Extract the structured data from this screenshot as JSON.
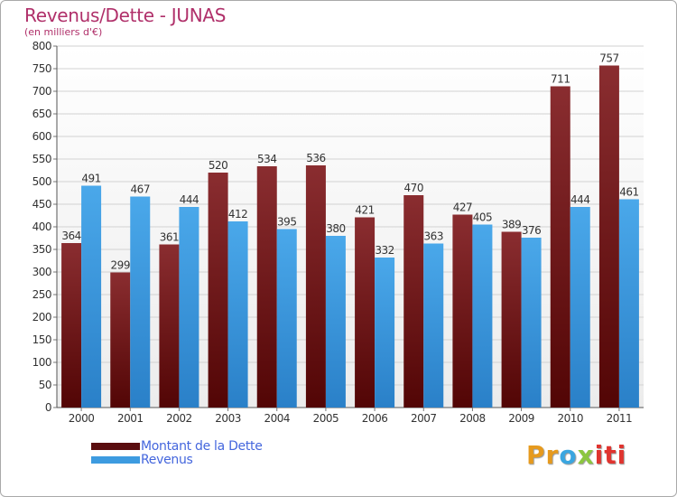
{
  "chart_data": {
    "type": "bar",
    "title": "Revenus/Dette - JUNAS",
    "subtitle": "(en milliers d'€)",
    "categories": [
      "2000",
      "2001",
      "2002",
      "2003",
      "2004",
      "2005",
      "2006",
      "2007",
      "2008",
      "2009",
      "2010",
      "2011"
    ],
    "series": [
      {
        "name": "Montant de la Dette",
        "color": "#7a1a1d",
        "values": [
          364,
          299,
          361,
          520,
          534,
          536,
          421,
          470,
          427,
          389,
          711,
          757
        ]
      },
      {
        "name": "Revenus",
        "color": "#3d9be0",
        "values": [
          491,
          467,
          444,
          412,
          395,
          380,
          332,
          363,
          405,
          376,
          444,
          461
        ]
      }
    ],
    "ylim": [
      0,
      800
    ],
    "yticks": [
      "0",
      "50",
      "100",
      "150",
      "200",
      "250",
      "300",
      "350",
      "400",
      "450",
      "500",
      "550",
      "600",
      "650",
      "700",
      "750",
      "800"
    ],
    "grid": true,
    "legend_position": "bottom-left"
  },
  "logo": {
    "text": "Proxiti",
    "letters": [
      "Pr",
      "o",
      "x",
      "iti"
    ]
  }
}
